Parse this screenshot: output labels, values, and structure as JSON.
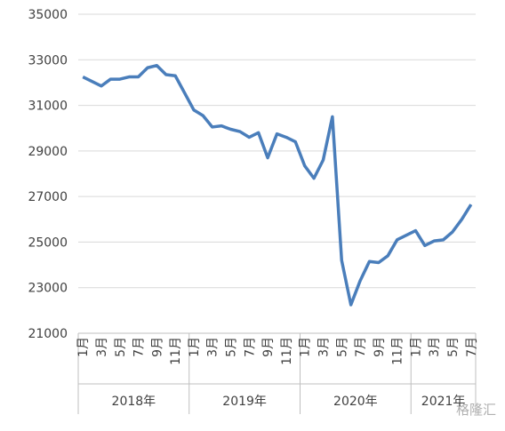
{
  "chart_data": {
    "type": "line",
    "categories": [
      "1月",
      null,
      "3月",
      null,
      "5月",
      null,
      "7月",
      null,
      "9月",
      null,
      "11月",
      null,
      "1月",
      null,
      "3月",
      null,
      "5月",
      null,
      "7月",
      null,
      "9月",
      null,
      "11月",
      null,
      "1月",
      null,
      "3月",
      null,
      "5月",
      null,
      "7月",
      null,
      "9月",
      null,
      "11月",
      null,
      "1月",
      null,
      "3月",
      null,
      "5月",
      null,
      "7月"
    ],
    "years": [
      "2018年",
      "2019年",
      "2020年",
      "2021年"
    ],
    "series": [
      {
        "color": "#4a7ebb",
        "values": [
          32250,
          32050,
          31850,
          32150,
          32150,
          32250,
          32250,
          32650,
          32750,
          32350,
          32300,
          31550,
          30800,
          30550,
          30050,
          30100,
          29950,
          29850,
          29600,
          29800,
          28700,
          29750,
          29600,
          29400,
          28350,
          27800,
          28600,
          30500,
          24200,
          22250,
          23300,
          24150,
          24100,
          24400,
          25100,
          25300,
          25500,
          24850,
          25050,
          25100,
          25450,
          26000,
          26650
        ]
      }
    ],
    "ylim": [
      21000,
      35000
    ],
    "yticks": [
      21000,
      23000,
      25000,
      27000,
      29000,
      31000,
      33000,
      35000
    ],
    "grid": true,
    "watermark": "格隆汇"
  }
}
